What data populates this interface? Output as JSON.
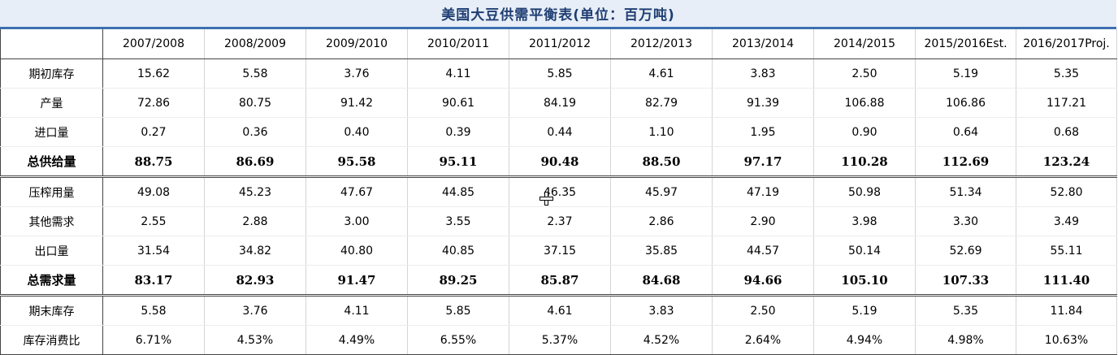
{
  "title": "美国大豆供需平衡表(单位：百万吨)",
  "columns": [
    "2007/2008",
    "2008/2009",
    "2009/2010",
    "2010/2011",
    "2011/2012",
    "2012/2013",
    "2013/2014",
    "2014/2015",
    "2015/2016Est.",
    "2016/2017Proj."
  ],
  "rows": [
    {
      "label": "期初库存",
      "values": [
        "15.62",
        "5.58",
        "3.76",
        "4.11",
        "5.85",
        "4.61",
        "3.83",
        "2.50",
        "5.19",
        "5.35"
      ]
    },
    {
      "label": "产量",
      "values": [
        "72.86",
        "80.75",
        "91.42",
        "90.61",
        "84.19",
        "82.79",
        "91.39",
        "106.88",
        "106.86",
        "117.21"
      ]
    },
    {
      "label": "进口量",
      "values": [
        "0.27",
        "0.36",
        "0.40",
        "0.39",
        "0.44",
        "1.10",
        "1.95",
        "0.90",
        "0.64",
        "0.68"
      ]
    },
    {
      "label": "总供给量",
      "values": [
        "88.75",
        "86.69",
        "95.58",
        "95.11",
        "90.48",
        "88.50",
        "97.17",
        "110.28",
        "112.69",
        "123.24"
      ]
    },
    {
      "label": "压榨用量",
      "values": [
        "49.08",
        "45.23",
        "47.67",
        "44.85",
        "46.35",
        "45.97",
        "47.19",
        "50.98",
        "51.34",
        "52.80"
      ]
    },
    {
      "label": "其他需求",
      "values": [
        "2.55",
        "2.88",
        "3.00",
        "3.55",
        "2.37",
        "2.86",
        "2.90",
        "3.98",
        "3.30",
        "3.49"
      ]
    },
    {
      "label": "出口量",
      "values": [
        "31.54",
        "34.82",
        "40.80",
        "40.85",
        "37.15",
        "35.85",
        "44.57",
        "50.14",
        "52.69",
        "55.11"
      ]
    },
    {
      "label": "总需求量",
      "values": [
        "83.17",
        "82.93",
        "91.47",
        "89.25",
        "85.87",
        "84.68",
        "94.66",
        "105.10",
        "107.33",
        "111.40"
      ]
    },
    {
      "label": "期末库存",
      "values": [
        "5.58",
        "3.76",
        "4.11",
        "5.85",
        "4.61",
        "3.83",
        "2.50",
        "5.19",
        "5.35",
        "11.84"
      ]
    },
    {
      "label": "库存消费比",
      "values": [
        "6.71%",
        "4.53%",
        "4.49%",
        "6.55%",
        "5.37%",
        "4.52%",
        "2.64%",
        "4.94%",
        "4.98%",
        "10.63%"
      ]
    }
  ]
}
